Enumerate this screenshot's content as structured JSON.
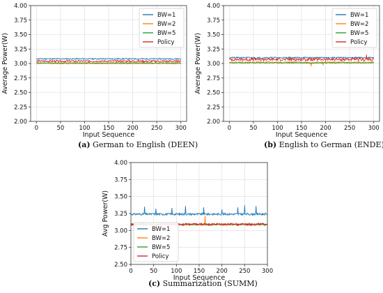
{
  "chart_data": [
    {
      "type": "line",
      "caption_label": "(a)",
      "caption_text": " German to English (DEEN)",
      "xlabel": "Input Sequence",
      "ylabel": "Average Power(W)",
      "xlim": [
        -12,
        312
      ],
      "ylim": [
        2.0,
        4.0
      ],
      "xticks": [
        "0",
        "50",
        "100",
        "150",
        "200",
        "250",
        "300"
      ],
      "yticks": [
        "2.00",
        "2.25",
        "2.50",
        "2.75",
        "3.00",
        "3.25",
        "3.50",
        "3.75",
        "4.00"
      ],
      "grid": true,
      "legend": "top-right",
      "x": [
        0,
        300
      ],
      "series": [
        {
          "name": "BW=1",
          "color": "#1f77b4",
          "mean": 3.08,
          "noise": 0.01,
          "seed": 11,
          "spikes": [],
          "dips": []
        },
        {
          "name": "BW=2",
          "color": "#ff7f0e",
          "mean": 3.0,
          "noise": 0.008,
          "seed": 12,
          "spikes": [],
          "dips": []
        },
        {
          "name": "BW=5",
          "color": "#2ca02c",
          "mean": 3.01,
          "noise": 0.008,
          "seed": 13,
          "spikes": [],
          "dips": []
        },
        {
          "name": "Policy",
          "color": "#d62728",
          "mean": 3.04,
          "noise": 0.015,
          "seed": 14,
          "spikes": [],
          "dips": []
        }
      ]
    },
    {
      "type": "line",
      "caption_label": "(b)",
      "caption_text": " English to German (ENDE)",
      "xlabel": "Input Sequence",
      "ylabel": "Average Power(W)",
      "xlim": [
        -12,
        312
      ],
      "ylim": [
        2.0,
        4.0
      ],
      "xticks": [
        "0",
        "50",
        "100",
        "150",
        "200",
        "250",
        "300"
      ],
      "yticks": [
        "2.00",
        "2.25",
        "2.50",
        "2.75",
        "3.00",
        "3.25",
        "3.50",
        "3.75",
        "4.00"
      ],
      "grid": true,
      "legend": "top-right",
      "x": [
        0,
        300
      ],
      "series": [
        {
          "name": "BW=1",
          "color": "#1f77b4",
          "mean": 3.1,
          "noise": 0.012,
          "seed": 21,
          "spikes": [],
          "dips": []
        },
        {
          "name": "BW=2",
          "color": "#ff7f0e",
          "mean": 3.02,
          "noise": 0.012,
          "seed": 22,
          "spikes": [],
          "dips": [
            [
              170,
              2.95
            ],
            [
              195,
              2.97
            ]
          ]
        },
        {
          "name": "BW=5",
          "color": "#2ca02c",
          "mean": 3.01,
          "noise": 0.008,
          "seed": 23,
          "spikes": [],
          "dips": []
        },
        {
          "name": "Policy",
          "color": "#d62728",
          "mean": 3.07,
          "noise": 0.025,
          "seed": 24,
          "spikes": [
            [
              285,
              3.15
            ]
          ],
          "dips": []
        }
      ]
    },
    {
      "type": "line",
      "caption_label": "(c)",
      "caption_text": " Summarization (SUMM)",
      "xlabel": "Input Sequence",
      "ylabel": "Avg Power(W)",
      "xlim": [
        0,
        300
      ],
      "ylim": [
        2.5,
        4.0
      ],
      "xticks": [
        "0",
        "50",
        "100",
        "150",
        "200",
        "250",
        "300"
      ],
      "yticks": [
        "2.50",
        "2.75",
        "3.00",
        "3.25",
        "3.50",
        "3.75",
        "4.00"
      ],
      "grid": true,
      "legend": "bottom-left",
      "x": [
        0,
        300
      ],
      "series": [
        {
          "name": "BW=1",
          "color": "#1f77b4",
          "mean": 3.24,
          "noise": 0.015,
          "seed": 31,
          "spikes": [
            [
              30,
              3.35
            ],
            [
              55,
              3.32
            ],
            [
              90,
              3.33
            ],
            [
              120,
              3.36
            ],
            [
              160,
              3.34
            ],
            [
              200,
              3.31
            ],
            [
              235,
              3.34
            ],
            [
              250,
              3.37
            ],
            [
              275,
              3.36
            ]
          ],
          "dips": []
        },
        {
          "name": "BW=2",
          "color": "#ff7f0e",
          "mean": 3.09,
          "noise": 0.012,
          "seed": 32,
          "spikes": [
            [
              163,
              3.22
            ]
          ],
          "dips": []
        },
        {
          "name": "BW=5",
          "color": "#2ca02c",
          "mean": 3.09,
          "noise": 0.01,
          "seed": 33,
          "spikes": [],
          "dips": []
        },
        {
          "name": "Policy",
          "color": "#d62728",
          "mean": 3.09,
          "noise": 0.018,
          "seed": 34,
          "spikes": [],
          "dips": []
        }
      ]
    }
  ]
}
